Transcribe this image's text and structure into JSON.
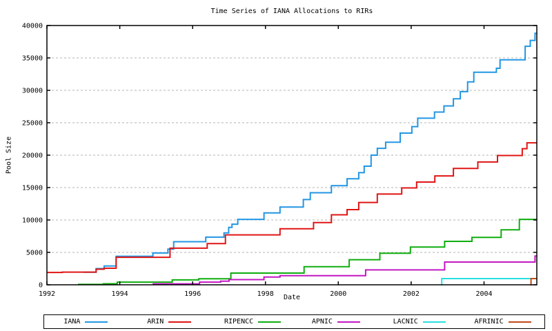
{
  "chart_data": {
    "type": "line",
    "subtype": "step",
    "title": "Time Series of IANA Allocations to RIRs",
    "xlabel": "Date",
    "ylabel": "Pool Size",
    "x_range": [
      1992,
      2005.45
    ],
    "y_range": [
      0,
      40000
    ],
    "x_ticks": [
      1992,
      1994,
      1996,
      1998,
      2000,
      2002,
      2004
    ],
    "y_ticks": [
      0,
      5000,
      10000,
      15000,
      20000,
      25000,
      30000,
      35000,
      40000
    ],
    "grid": "horizontal-dashed",
    "grid_color": "#b3b3b3",
    "legend_position": "bottom",
    "series": [
      {
        "name": "IANA",
        "color": "#2196e3",
        "points": [
          [
            1993.0,
            1950
          ],
          [
            1993.35,
            2500
          ],
          [
            1993.57,
            2900
          ],
          [
            1993.9,
            4400
          ],
          [
            1994.91,
            4900
          ],
          [
            1995.32,
            5500
          ],
          [
            1995.48,
            6650
          ],
          [
            1996.36,
            7350
          ],
          [
            1996.86,
            8000
          ],
          [
            1996.99,
            8850
          ],
          [
            1997.08,
            9350
          ],
          [
            1997.24,
            10100
          ],
          [
            1997.96,
            11100
          ],
          [
            1998.4,
            12000
          ],
          [
            1999.04,
            13150
          ],
          [
            1999.23,
            14200
          ],
          [
            1999.81,
            15300
          ],
          [
            2000.24,
            16350
          ],
          [
            2000.56,
            17300
          ],
          [
            2000.71,
            18300
          ],
          [
            2000.9,
            20000
          ],
          [
            2001.07,
            21050
          ],
          [
            2001.3,
            22000
          ],
          [
            2001.7,
            23400
          ],
          [
            2002.02,
            24400
          ],
          [
            2002.18,
            25700
          ],
          [
            2002.64,
            26650
          ],
          [
            2002.9,
            27600
          ],
          [
            2003.16,
            28700
          ],
          [
            2003.35,
            29800
          ],
          [
            2003.55,
            31300
          ],
          [
            2003.72,
            32800
          ],
          [
            2004.34,
            33400
          ],
          [
            2004.44,
            34700
          ],
          [
            2005.13,
            36800
          ],
          [
            2005.27,
            37700
          ],
          [
            2005.4,
            38800
          ]
        ]
      },
      {
        "name": "ARIN",
        "color": "#e01414",
        "points": [
          [
            1992.0,
            1900
          ],
          [
            1992.42,
            1960
          ],
          [
            1993.35,
            2400
          ],
          [
            1993.57,
            2550
          ],
          [
            1993.9,
            4250
          ],
          [
            1995.38,
            5650
          ],
          [
            1996.4,
            6350
          ],
          [
            1996.9,
            7700
          ],
          [
            1998.4,
            8650
          ],
          [
            1999.32,
            9600
          ],
          [
            1999.81,
            10800
          ],
          [
            2000.24,
            11600
          ],
          [
            2000.56,
            12700
          ],
          [
            2001.07,
            14000
          ],
          [
            2001.74,
            14950
          ],
          [
            2002.15,
            15850
          ],
          [
            2002.65,
            16800
          ],
          [
            2003.16,
            17950
          ],
          [
            2003.83,
            18950
          ],
          [
            2004.37,
            19950
          ],
          [
            2005.05,
            21000
          ],
          [
            2005.18,
            21900
          ]
        ]
      },
      {
        "name": "RIPENCC",
        "color": "#0ead0e",
        "points": [
          [
            1992.85,
            60
          ],
          [
            1993.55,
            160
          ],
          [
            1993.93,
            420
          ],
          [
            1995.44,
            760
          ],
          [
            1996.17,
            930
          ],
          [
            1997.05,
            1810
          ],
          [
            1999.06,
            2800
          ],
          [
            2000.3,
            3870
          ],
          [
            2001.14,
            4860
          ],
          [
            2001.98,
            5820
          ],
          [
            2002.92,
            6700
          ],
          [
            2003.67,
            7310
          ],
          [
            2004.47,
            8480
          ],
          [
            2004.97,
            10100
          ]
        ]
      },
      {
        "name": "APNIC",
        "color": "#c217c2",
        "points": [
          [
            1994.9,
            150
          ],
          [
            1996.19,
            420
          ],
          [
            1996.77,
            560
          ],
          [
            1997.0,
            800
          ],
          [
            1997.96,
            1200
          ],
          [
            1998.4,
            1400
          ],
          [
            2000.75,
            2300
          ],
          [
            2002.92,
            3510
          ],
          [
            2005.4,
            4450
          ]
        ]
      },
      {
        "name": "LACNIC",
        "color": "#25e0e0",
        "points": [
          [
            2002.82,
            0
          ],
          [
            2002.84,
            960
          ]
        ]
      },
      {
        "name": "AFRINIC",
        "color": "#c14a18",
        "points": [
          [
            2005.27,
            0
          ],
          [
            2005.29,
            960
          ]
        ]
      }
    ]
  }
}
